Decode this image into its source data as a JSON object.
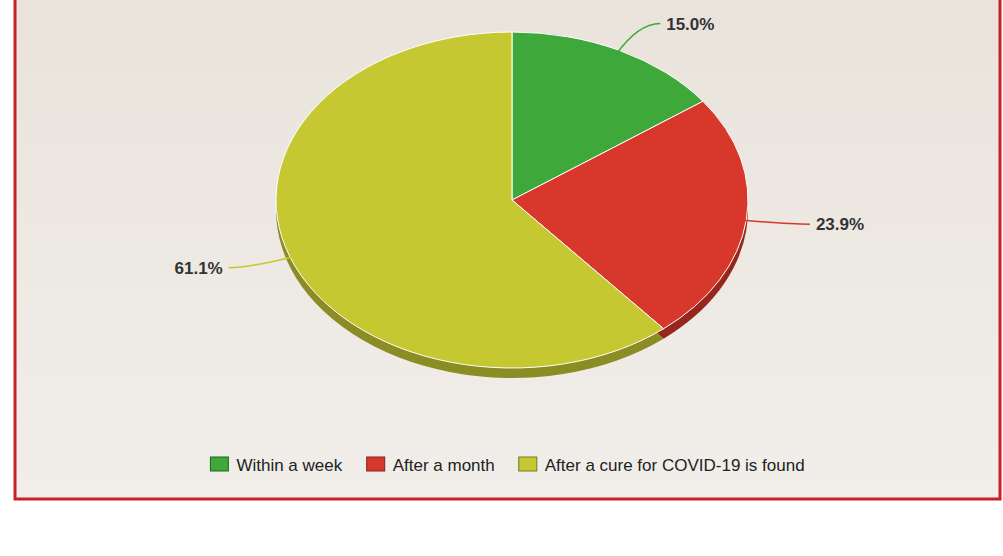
{
  "chart_data": {
    "type": "pie",
    "categories": [
      "Within a week",
      "After a month",
      "After a cure for COVID-19 is found"
    ],
    "values": [
      15.0,
      23.9,
      61.1
    ],
    "value_labels": [
      "15.0%",
      "23.9%",
      "61.1%"
    ],
    "colors": [
      "#3ea83a",
      "#d8382b",
      "#c6c832"
    ],
    "data_labels": true,
    "legend": "bottom"
  }
}
